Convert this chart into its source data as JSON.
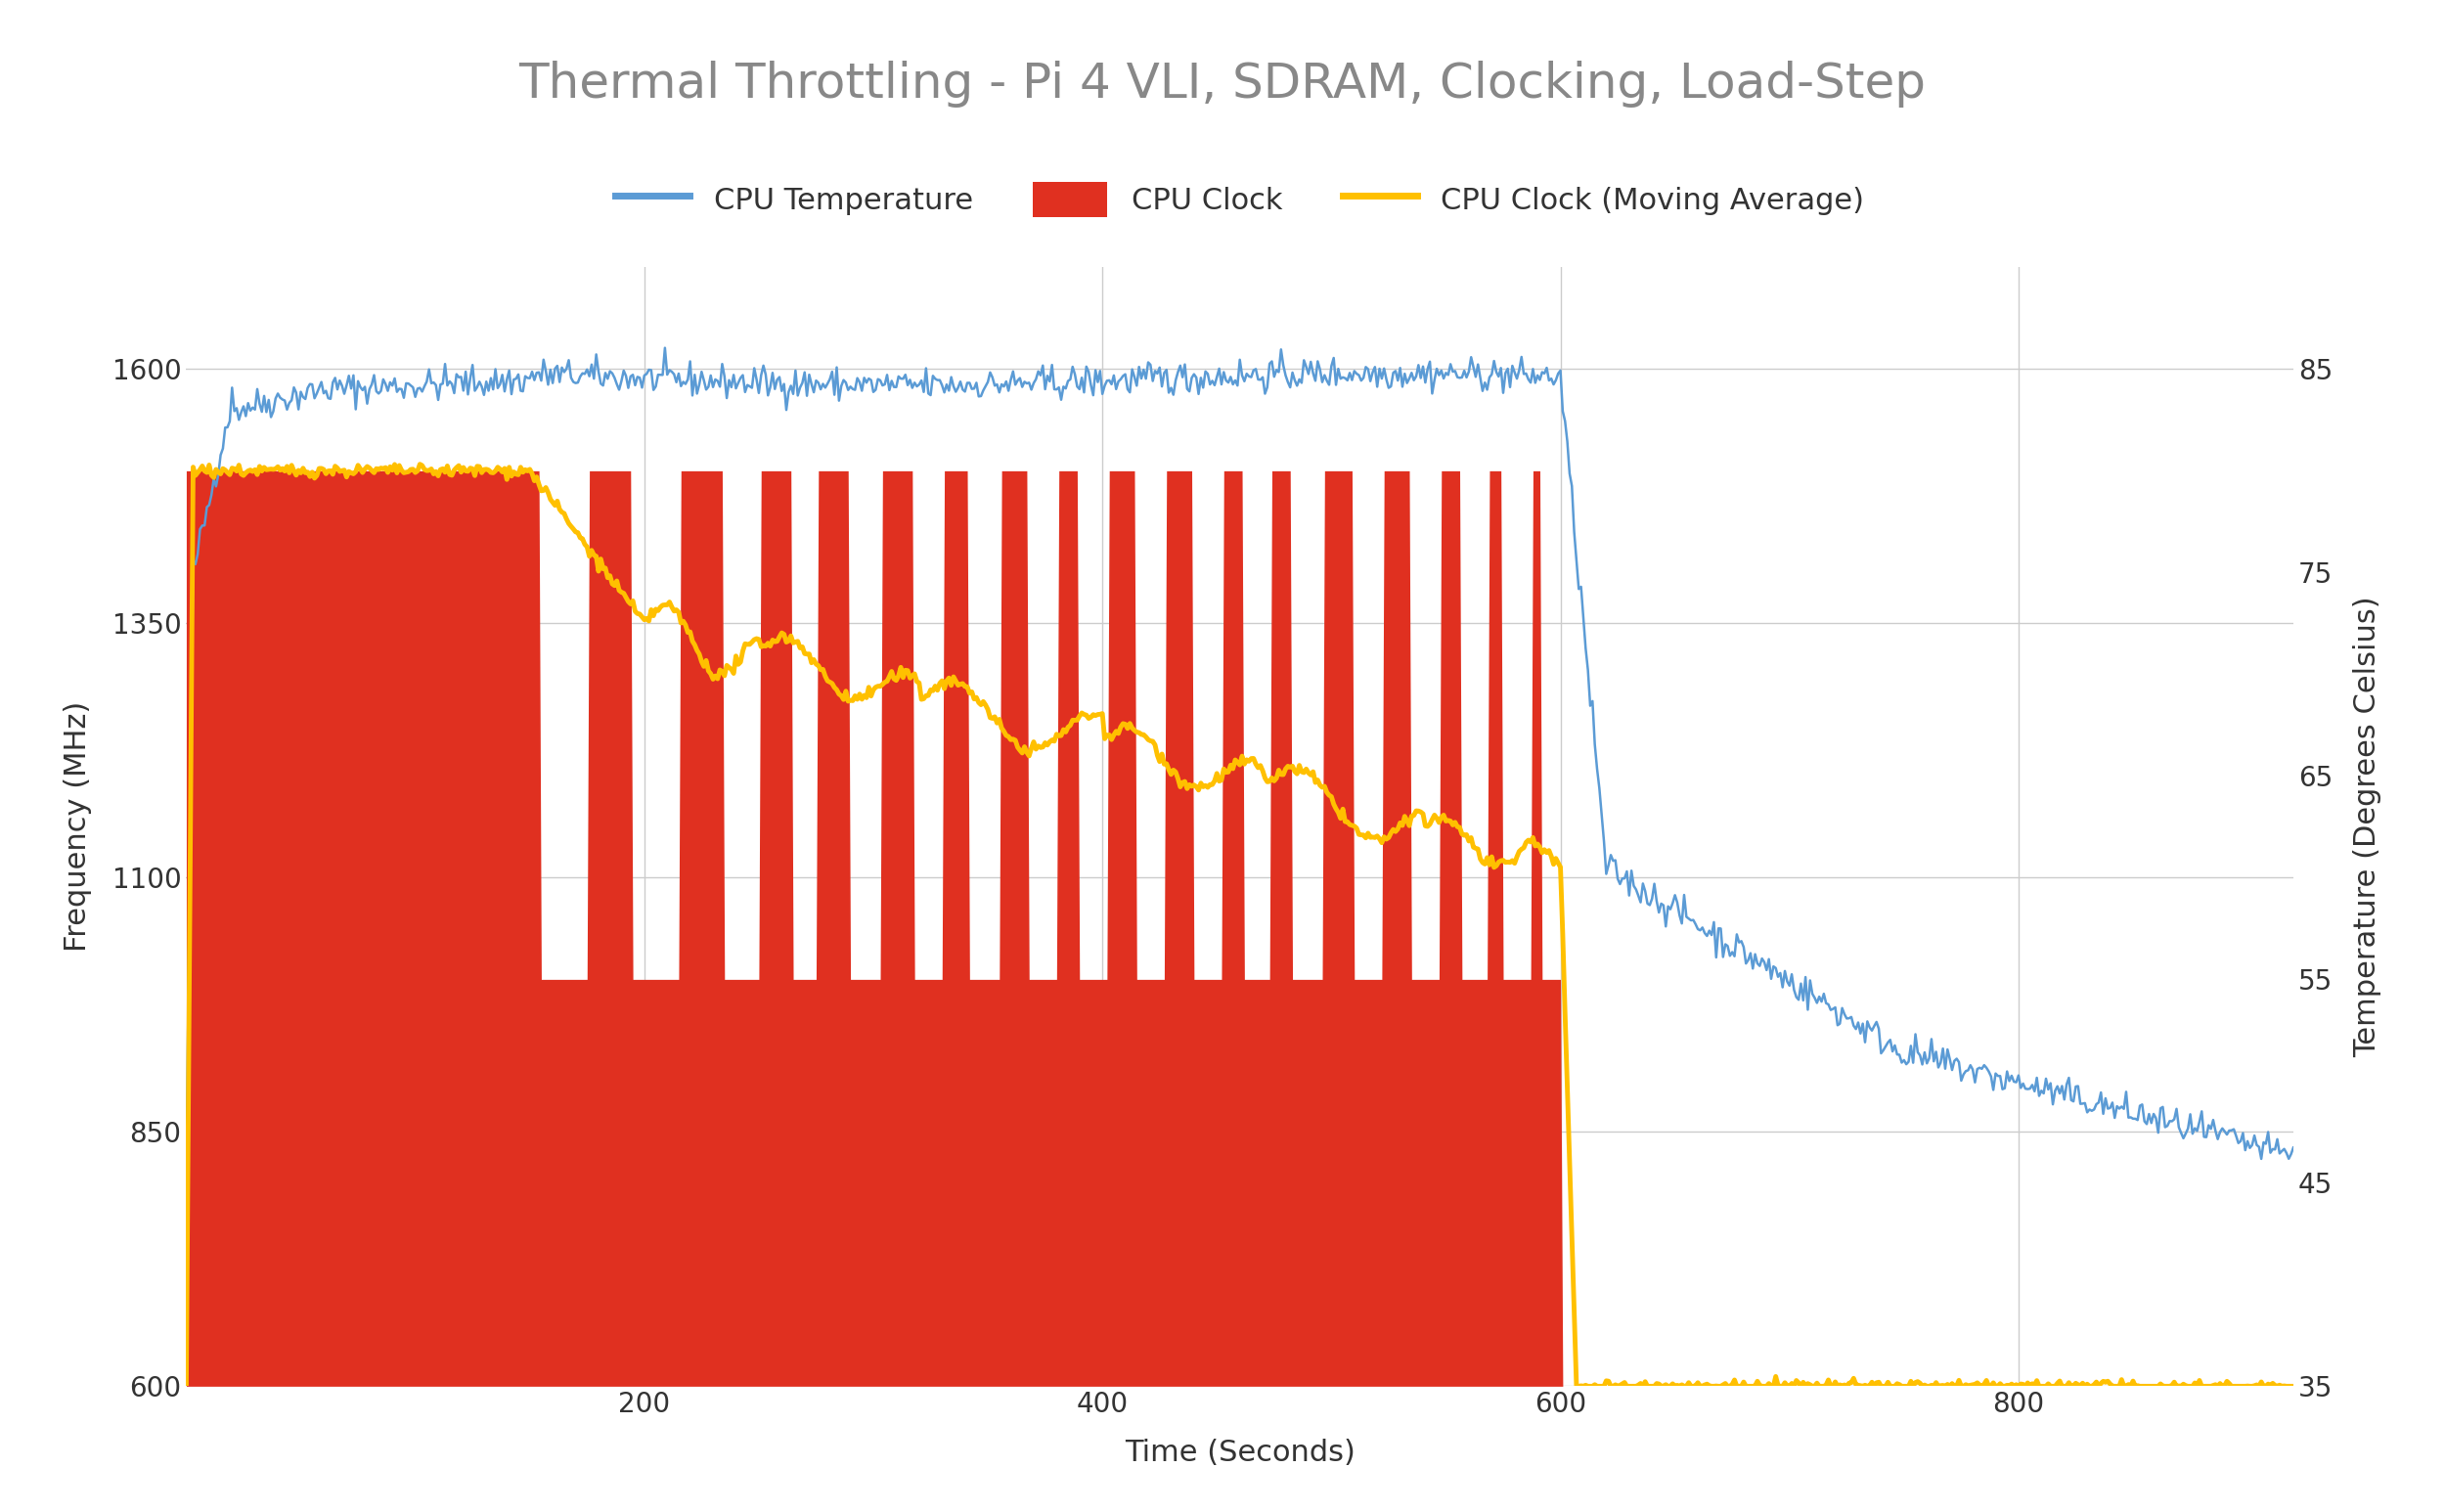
{
  "title": "Thermal Throttling - Pi 4 VLI, SDRAM, Clocking, Load-Step",
  "title_color": "#888888",
  "title_fontsize": 36,
  "xlabel": "Time (Seconds)",
  "ylabel_left": "Frequency (MHz)",
  "ylabel_right": "Temperature (Degrees Celsius)",
  "xlim": [
    0,
    920
  ],
  "ylim_left": [
    600,
    1700
  ],
  "ylim_right": [
    35,
    90
  ],
  "yticks_left": [
    600,
    850,
    1100,
    1350,
    1600
  ],
  "yticks_right": [
    35,
    45,
    55,
    65,
    75,
    85
  ],
  "xticks": [
    200,
    400,
    600,
    800
  ],
  "background_color": "#ffffff",
  "grid_color": "#cccccc",
  "cpu_temp_color": "#5b9bd5",
  "cpu_clock_color": "#e03020",
  "cpu_clock_ma_color": "#ffc000",
  "legend_labels": [
    "CPU Temperature",
    "CPU Clock",
    "CPU Clock (Moving Average)"
  ],
  "label_fontsize": 22,
  "tick_fontsize": 20,
  "legend_fontsize": 22,
  "freq_max": 1500,
  "freq_throttle_low": 1000,
  "throttle_start": 150,
  "load_end": 600
}
